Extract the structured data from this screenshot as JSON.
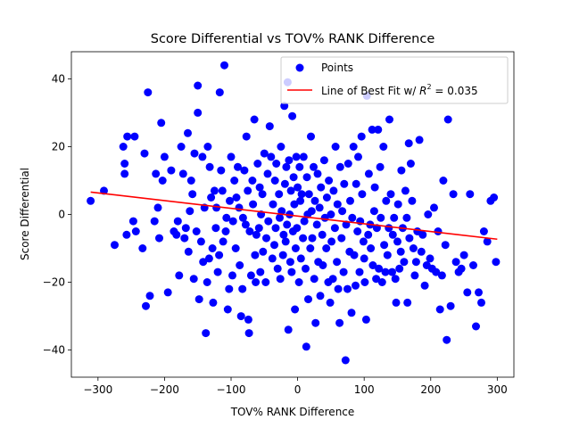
{
  "chart_data": {
    "type": "scatter",
    "title": "Score Differential vs TOV% RANK Difference",
    "xlabel": "TOV% RANK Difference",
    "ylabel": "Score Differential",
    "xlim": [
      -340,
      325
    ],
    "ylim": [
      -48,
      48
    ],
    "xticks": [
      -300,
      -200,
      -100,
      0,
      100,
      200,
      300
    ],
    "yticks": [
      -40,
      -20,
      0,
      20,
      40
    ],
    "grid": false,
    "legend_position": "top-right",
    "series": [
      {
        "name": "Points",
        "color": "#0000ff",
        "marker": "circle",
        "points": [
          [
            -311,
            4
          ],
          [
            -291,
            7
          ],
          [
            -275,
            -9
          ],
          [
            -262,
            20
          ],
          [
            -260,
            15
          ],
          [
            -260,
            12
          ],
          [
            -257,
            -6
          ],
          [
            -256,
            23
          ],
          [
            -247,
            -2
          ],
          [
            -245,
            23
          ],
          [
            -243,
            -5
          ],
          [
            -233,
            -10
          ],
          [
            -230,
            18
          ],
          [
            -228,
            -27
          ],
          [
            -225,
            36
          ],
          [
            -222,
            -24
          ],
          [
            -215,
            -2
          ],
          [
            -213,
            12
          ],
          [
            -210,
            2
          ],
          [
            -208,
            -7
          ],
          [
            -205,
            27
          ],
          [
            -203,
            10
          ],
          [
            -200,
            17
          ],
          [
            -195,
            -23
          ],
          [
            -190,
            13
          ],
          [
            -186,
            -5
          ],
          [
            -182,
            -6
          ],
          [
            -180,
            -2
          ],
          [
            -178,
            -18
          ],
          [
            -175,
            20
          ],
          [
            -172,
            12
          ],
          [
            -170,
            -7
          ],
          [
            -168,
            -4
          ],
          [
            -165,
            24
          ],
          [
            -164,
            -11
          ],
          [
            -162,
            1
          ],
          [
            -160,
            10
          ],
          [
            -158,
            6
          ],
          [
            -156,
            -19
          ],
          [
            -155,
            18
          ],
          [
            -152,
            -5
          ],
          [
            -150,
            38
          ],
          [
            -150,
            30
          ],
          [
            -148,
            -25
          ],
          [
            -145,
            -8
          ],
          [
            -143,
            17
          ],
          [
            -142,
            -14
          ],
          [
            -140,
            2
          ],
          [
            -138,
            -35
          ],
          [
            -136,
            -20
          ],
          [
            -135,
            20
          ],
          [
            -133,
            -13
          ],
          [
            -132,
            14
          ],
          [
            -130,
            5
          ],
          [
            -128,
            -10
          ],
          [
            -127,
            -26
          ],
          [
            -125,
            7
          ],
          [
            -123,
            -4
          ],
          [
            -122,
            2
          ],
          [
            -120,
            -17
          ],
          [
            -118,
            -12
          ],
          [
            -117,
            36
          ],
          [
            -115,
            13
          ],
          [
            -113,
            7
          ],
          [
            -112,
            -8
          ],
          [
            -110,
            44
          ],
          [
            -108,
            -5
          ],
          [
            -107,
            -1
          ],
          [
            -105,
            -28
          ],
          [
            -103,
            -22
          ],
          [
            -102,
            4
          ],
          [
            -100,
            17
          ],
          [
            -98,
            -18
          ],
          [
            -97,
            -2
          ],
          [
            -95,
            10
          ],
          [
            -93,
            -10
          ],
          [
            -92,
            5
          ],
          [
            -90,
            14
          ],
          [
            -88,
            2
          ],
          [
            -87,
            -15
          ],
          [
            -85,
            -30
          ],
          [
            -83,
            -22
          ],
          [
            -82,
            -1
          ],
          [
            -80,
            13
          ],
          [
            -78,
            -3
          ],
          [
            -77,
            23
          ],
          [
            -75,
            7
          ],
          [
            -74,
            -31
          ],
          [
            -73,
            -35
          ],
          [
            -72,
            -5
          ],
          [
            -70,
            -18
          ],
          [
            -68,
            10
          ],
          [
            -67,
            3
          ],
          [
            -65,
            28
          ],
          [
            -64,
            -12
          ],
          [
            -63,
            -20
          ],
          [
            -62,
            -6
          ],
          [
            -60,
            15
          ],
          [
            -58,
            -4
          ],
          [
            -57,
            8
          ],
          [
            -56,
            -17
          ],
          [
            -55,
            0
          ],
          [
            -53,
            6
          ],
          [
            -52,
            -11
          ],
          [
            -50,
            18
          ],
          [
            -48,
            -20
          ],
          [
            -47,
            -7
          ],
          [
            -45,
            12
          ],
          [
            -44,
            -2
          ],
          [
            -42,
            26
          ],
          [
            -40,
            17
          ],
          [
            -38,
            -13
          ],
          [
            -37,
            3
          ],
          [
            -35,
            -9
          ],
          [
            -34,
            10
          ],
          [
            -33,
            -4
          ],
          [
            -32,
            15
          ],
          [
            -30,
            -16
          ],
          [
            -28,
            6
          ],
          [
            -27,
            -1
          ],
          [
            -26,
            -19
          ],
          [
            -25,
            20
          ],
          [
            -24,
            1
          ],
          [
            -22,
            -12
          ],
          [
            -21,
            -6
          ],
          [
            -20,
            32
          ],
          [
            -19,
            9
          ],
          [
            -18,
            -8
          ],
          [
            -17,
            14
          ],
          [
            -16,
            -3
          ],
          [
            -15,
            39
          ],
          [
            -14,
            -34
          ],
          [
            -13,
            16
          ],
          [
            -12,
            0
          ],
          [
            -11,
            -14
          ],
          [
            -10,
            7
          ],
          [
            -9,
            -17
          ],
          [
            -8,
            29
          ],
          [
            -7,
            -5
          ],
          [
            -6,
            11
          ],
          [
            -5,
            3
          ],
          [
            -4,
            -28
          ],
          [
            -3,
            -10
          ],
          [
            -2,
            17
          ],
          [
            -1,
            -4
          ],
          [
            0,
            8
          ],
          [
            2,
            -20
          ],
          [
            3,
            14
          ],
          [
            4,
            4
          ],
          [
            5,
            -13
          ],
          [
            6,
            6
          ],
          [
            8,
            -7
          ],
          [
            9,
            17
          ],
          [
            10,
            -2
          ],
          [
            12,
            -16
          ],
          [
            13,
            -39
          ],
          [
            14,
            11
          ],
          [
            15,
            0
          ],
          [
            16,
            -25
          ],
          [
            17,
            6
          ],
          [
            19,
            -10
          ],
          [
            20,
            23
          ],
          [
            21,
            1
          ],
          [
            22,
            -7
          ],
          [
            24,
            14
          ],
          [
            25,
            -19
          ],
          [
            26,
            4
          ],
          [
            27,
            -32
          ],
          [
            29,
            -3
          ],
          [
            30,
            12
          ],
          [
            31,
            -14
          ],
          [
            33,
            2
          ],
          [
            34,
            -24
          ],
          [
            35,
            8
          ],
          [
            37,
            -6
          ],
          [
            38,
            -15
          ],
          [
            40,
            16
          ],
          [
            41,
            -1
          ],
          [
            43,
            -10
          ],
          [
            44,
            5
          ],
          [
            46,
            -20
          ],
          [
            47,
            10
          ],
          [
            49,
            -26
          ],
          [
            50,
            0
          ],
          [
            51,
            -8
          ],
          [
            53,
            -19
          ],
          [
            54,
            7
          ],
          [
            56,
            -4
          ],
          [
            57,
            20
          ],
          [
            59,
            -14
          ],
          [
            60,
            3
          ],
          [
            61,
            -22
          ],
          [
            63,
            -32
          ],
          [
            64,
            14
          ],
          [
            66,
            -7
          ],
          [
            67,
            1
          ],
          [
            69,
            -17
          ],
          [
            70,
            9
          ],
          [
            72,
            -43
          ],
          [
            73,
            -3
          ],
          [
            75,
            -22
          ],
          [
            76,
            15
          ],
          [
            78,
            -11
          ],
          [
            79,
            4
          ],
          [
            81,
            -29
          ],
          [
            82,
            -1
          ],
          [
            84,
            20
          ],
          [
            85,
            -12
          ],
          [
            87,
            -21
          ],
          [
            88,
            9
          ],
          [
            90,
            -5
          ],
          [
            91,
            17
          ],
          [
            93,
            -17
          ],
          [
            94,
            -2
          ],
          [
            96,
            23
          ],
          [
            97,
            6
          ],
          [
            99,
            -8
          ],
          [
            100,
            -13
          ],
          [
            101,
            -20
          ],
          [
            103,
            -31
          ],
          [
            104,
            35
          ],
          [
            106,
            -6
          ],
          [
            107,
            12
          ],
          [
            109,
            -3
          ],
          [
            110,
            -10
          ],
          [
            112,
            25
          ],
          [
            113,
            -15
          ],
          [
            115,
            1
          ],
          [
            116,
            8
          ],
          [
            118,
            -19
          ],
          [
            119,
            -4
          ],
          [
            121,
            25
          ],
          [
            122,
            -16
          ],
          [
            124,
            14
          ],
          [
            125,
            -1
          ],
          [
            127,
            -20
          ],
          [
            129,
            20
          ],
          [
            130,
            -9
          ],
          [
            132,
            -17
          ],
          [
            133,
            4
          ],
          [
            135,
            -12
          ],
          [
            137,
            -4
          ],
          [
            138,
            28
          ],
          [
            140,
            6
          ],
          [
            142,
            -17
          ],
          [
            143,
            -6
          ],
          [
            145,
            -1
          ],
          [
            147,
            -19
          ],
          [
            148,
            -26
          ],
          [
            150,
            -8
          ],
          [
            151,
            3
          ],
          [
            153,
            -16
          ],
          [
            155,
            -11
          ],
          [
            156,
            13
          ],
          [
            158,
            -4
          ],
          [
            160,
            -14
          ],
          [
            162,
            7
          ],
          [
            164,
            -1
          ],
          [
            165,
            -26
          ],
          [
            167,
            21
          ],
          [
            168,
            -7
          ],
          [
            170,
            15
          ],
          [
            172,
            4
          ],
          [
            174,
            -10
          ],
          [
            176,
            -18
          ],
          [
            178,
            -14
          ],
          [
            180,
            -5
          ],
          [
            183,
            22
          ],
          [
            186,
            -11
          ],
          [
            188,
            -6
          ],
          [
            191,
            -21
          ],
          [
            194,
            -15
          ],
          [
            196,
            0
          ],
          [
            199,
            -13
          ],
          [
            202,
            -16
          ],
          [
            205,
            2
          ],
          [
            208,
            -17
          ],
          [
            211,
            -5
          ],
          [
            214,
            -28
          ],
          [
            217,
            -18
          ],
          [
            219,
            10
          ],
          [
            222,
            -9
          ],
          [
            224,
            -37
          ],
          [
            226,
            28
          ],
          [
            230,
            -27
          ],
          [
            234,
            6
          ],
          [
            238,
            -14
          ],
          [
            242,
            -17
          ],
          [
            246,
            -16
          ],
          [
            250,
            -12
          ],
          [
            255,
            -23
          ],
          [
            259,
            6
          ],
          [
            264,
            -15
          ],
          [
            268,
            -33
          ],
          [
            272,
            -23
          ],
          [
            276,
            -26
          ],
          [
            280,
            -5
          ],
          [
            285,
            -8
          ],
          [
            290,
            4
          ],
          [
            295,
            5
          ],
          [
            298,
            -14
          ]
        ]
      }
    ],
    "fit_line": {
      "label_text": "Line of Best Fit w/ ",
      "r2_symbol": "R",
      "r2_exponent": "2",
      "r2_value": " = 0.035",
      "color": "#ff0000",
      "x": [
        -311,
        300
      ],
      "y": [
        6.6,
        -7.3
      ]
    }
  }
}
